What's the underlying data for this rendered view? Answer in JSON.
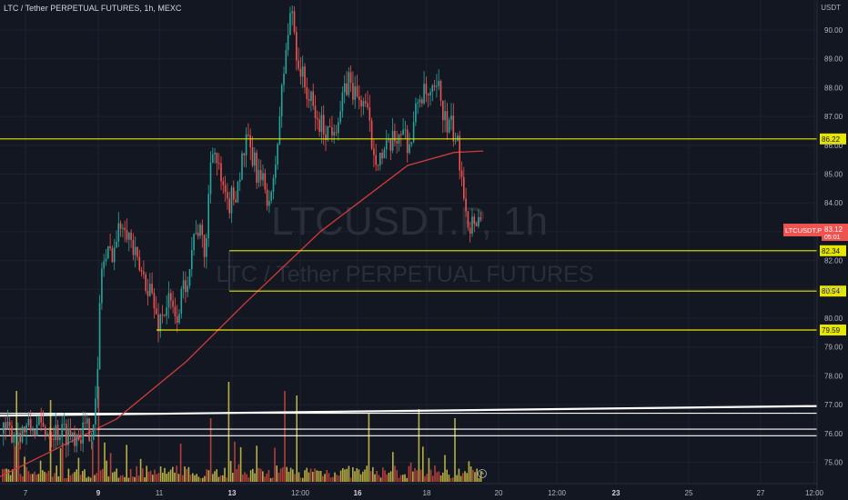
{
  "header": {
    "title": "LTC / Tether PERPETUAL FUTURES, 1h, MEXC",
    "unit": "USDT"
  },
  "watermark": {
    "symbol": "LTCUSDT.P, 1h",
    "name": "LTC / Tether PERPETUAL FUTURES"
  },
  "price_tag": {
    "label": "LTCUSDT.P",
    "price": "83.12",
    "countdown": "05:01"
  },
  "colors": {
    "background": "#131722",
    "grid": "#1e222d",
    "up": "#26a69a",
    "down": "#ef5350",
    "level_line": "#e6e600",
    "ma_line": "#d03a3a",
    "white_line": "#ffffff",
    "vol_yellow": "#d4c94a",
    "vol_red": "#d0463c"
  },
  "chart_data": {
    "type": "candlestick",
    "x_axis_labels": [
      "7",
      "9",
      "11",
      "13",
      "12:00",
      "16",
      "18",
      "20",
      "12:00",
      "23",
      "25",
      "27",
      "12:00"
    ],
    "y_axis_labels": [
      "90.00",
      "89.00",
      "88.00",
      "87.00",
      "86.00",
      "85.00",
      "84.00",
      "83.00",
      "82.00",
      "81.00",
      "80.00",
      "79.00",
      "78.00",
      "77.00",
      "76.00",
      "75.00"
    ],
    "ylim": [
      74.5,
      91.0
    ],
    "price_levels": [
      {
        "label": "86.22",
        "value": 86.22
      },
      {
        "label": "82.34",
        "value": 82.34
      },
      {
        "label": "80.94",
        "value": 80.94
      },
      {
        "label": "79.59",
        "value": 79.59
      }
    ],
    "white_lines": [
      76.7,
      76.15,
      75.92
    ],
    "ma_line_approx": [
      [
        0.0,
        74.5
      ],
      [
        0.2,
        76.5
      ],
      [
        0.32,
        78.5
      ],
      [
        0.42,
        80.5
      ],
      [
        0.55,
        83.0
      ],
      [
        0.7,
        85.3
      ],
      [
        0.78,
        85.75
      ],
      [
        0.83,
        85.8
      ]
    ],
    "last_price": 83.12
  }
}
